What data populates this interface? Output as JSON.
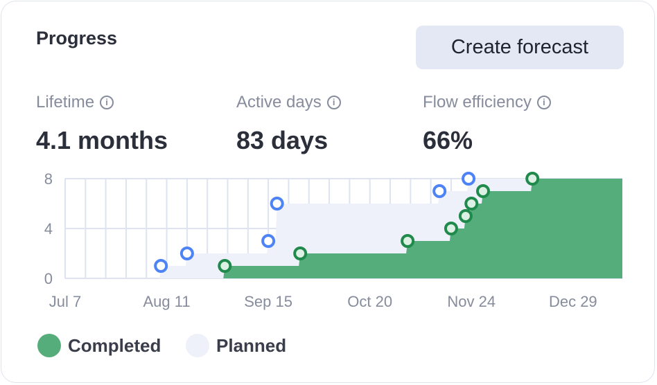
{
  "title": "Progress",
  "create_button": "Create forecast",
  "stats": [
    {
      "label": "Lifetime",
      "value": "4.1 months"
    },
    {
      "label": "Active days",
      "value": "83 days"
    },
    {
      "label": "Flow efficiency",
      "value": "66%"
    }
  ],
  "info_glyph": "i",
  "legend": {
    "completed": "Completed",
    "planned": "Planned"
  },
  "colors": {
    "completed_fill": "#55ad7b",
    "completed_stroke": "#1f8a4c",
    "planned_fill": "#eef1f9",
    "planned_stroke": "#4d83f5",
    "grid": "#dde3f0"
  },
  "chart_data": {
    "type": "area",
    "x_unit": "days since Jul 7",
    "xlim": [
      0,
      192
    ],
    "ylim": [
      0,
      8
    ],
    "yticks": [
      0,
      4,
      8
    ],
    "xticks": [
      {
        "day": 0,
        "label": "Jul 7"
      },
      {
        "day": 35,
        "label": "Aug 11"
      },
      {
        "day": 70,
        "label": "Sep 15"
      },
      {
        "day": 105,
        "label": "Oct 20"
      },
      {
        "day": 140,
        "label": "Nov 24"
      },
      {
        "day": 175,
        "label": "Dec 29"
      }
    ],
    "series": [
      {
        "name": "Planned",
        "points": [
          [
            33,
            1
          ],
          [
            42,
            2
          ],
          [
            70,
            3
          ],
          [
            73,
            6
          ],
          [
            129,
            7
          ],
          [
            139,
            8
          ]
        ]
      },
      {
        "name": "Completed",
        "points": [
          [
            55,
            1
          ],
          [
            81,
            2
          ],
          [
            118,
            3
          ],
          [
            133,
            4
          ],
          [
            138,
            5
          ],
          [
            140,
            6
          ],
          [
            144,
            7
          ],
          [
            161,
            8
          ]
        ]
      }
    ]
  }
}
